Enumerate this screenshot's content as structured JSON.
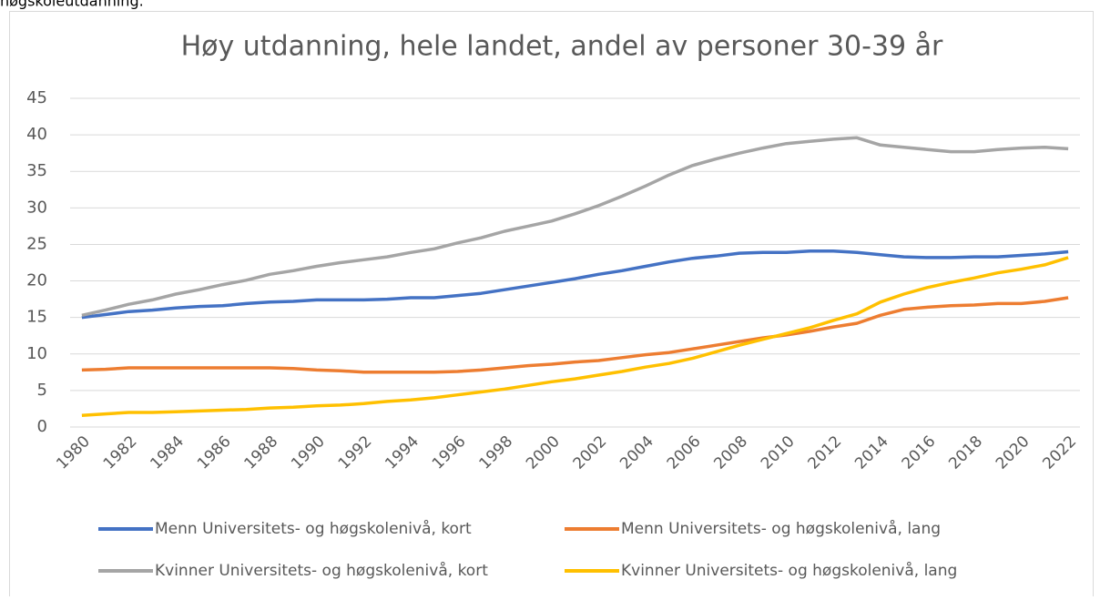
{
  "caption": "høgskoleutdanning.",
  "chart_data": {
    "type": "line",
    "title": "Høy utdanning, hele landet, andel av personer 30-39 år",
    "categories": [
      "1980",
      null,
      "1982",
      null,
      "1984",
      null,
      "1986",
      null,
      "1988",
      null,
      "1990",
      null,
      "1992",
      null,
      "1994",
      null,
      "1996",
      null,
      "1998",
      null,
      "2000",
      null,
      "2002",
      null,
      "2004",
      null,
      "2006",
      null,
      "2008",
      null,
      "2010",
      null,
      "2012",
      null,
      "2014",
      null,
      "2016",
      null,
      "2018",
      null,
      "2020",
      null,
      "2022"
    ],
    "ylim": [
      0,
      45
    ],
    "yticks": [
      0,
      5,
      10,
      15,
      20,
      25,
      30,
      35,
      40,
      45
    ],
    "grid": true,
    "legend": "bottom",
    "series": [
      {
        "name": "Menn Universitets- og høgskolenivå, kort",
        "color": "#4472c4",
        "values": [
          15.0,
          15.4,
          15.8,
          16.0,
          16.3,
          16.5,
          16.6,
          16.9,
          17.1,
          17.2,
          17.4,
          17.4,
          17.4,
          17.5,
          17.7,
          17.7,
          18.0,
          18.3,
          18.8,
          19.3,
          19.8,
          20.3,
          20.9,
          21.4,
          22.0,
          22.6,
          23.1,
          23.4,
          23.8,
          23.9,
          23.9,
          24.1,
          24.1,
          23.9,
          23.6,
          23.3,
          23.2,
          23.2,
          23.3,
          23.3,
          23.5,
          23.7,
          24.0
        ]
      },
      {
        "name": "Menn Universitets- og høgskolenivå, lang",
        "color": "#ed7d31",
        "values": [
          7.8,
          7.9,
          8.1,
          8.1,
          8.1,
          8.1,
          8.1,
          8.1,
          8.1,
          8.0,
          7.8,
          7.7,
          7.5,
          7.5,
          7.5,
          7.5,
          7.6,
          7.8,
          8.1,
          8.4,
          8.6,
          8.9,
          9.1,
          9.5,
          9.9,
          10.2,
          10.7,
          11.2,
          11.7,
          12.2,
          12.6,
          13.1,
          13.7,
          14.2,
          15.3,
          16.1,
          16.4,
          16.6,
          16.7,
          16.9,
          16.9,
          17.2,
          17.7
        ]
      },
      {
        "name": "Kvinner Universitets- og høgskolenivå, kort",
        "color": "#a5a5a5",
        "values": [
          15.3,
          16.0,
          16.8,
          17.4,
          18.2,
          18.8,
          19.5,
          20.1,
          20.9,
          21.4,
          22.0,
          22.5,
          22.9,
          23.3,
          23.9,
          24.4,
          25.2,
          25.9,
          26.8,
          27.5,
          28.2,
          29.2,
          30.3,
          31.6,
          33.0,
          34.5,
          35.8,
          36.7,
          37.5,
          38.2,
          38.8,
          39.1,
          39.4,
          39.6,
          38.6,
          38.3,
          38.0,
          37.7,
          37.7,
          38.0,
          38.2,
          38.3,
          38.1
        ]
      },
      {
        "name": "Kvinner Universitets- og høgskolenivå, lang",
        "color": "#ffc000",
        "values": [
          1.6,
          1.8,
          2.0,
          2.0,
          2.1,
          2.2,
          2.3,
          2.4,
          2.6,
          2.7,
          2.9,
          3.0,
          3.2,
          3.5,
          3.7,
          4.0,
          4.4,
          4.8,
          5.2,
          5.7,
          6.2,
          6.6,
          7.1,
          7.6,
          8.2,
          8.7,
          9.4,
          10.3,
          11.2,
          12.0,
          12.8,
          13.6,
          14.6,
          15.5,
          17.1,
          18.2,
          19.1,
          19.8,
          20.4,
          21.1,
          21.6,
          22.2,
          23.2
        ]
      }
    ]
  }
}
